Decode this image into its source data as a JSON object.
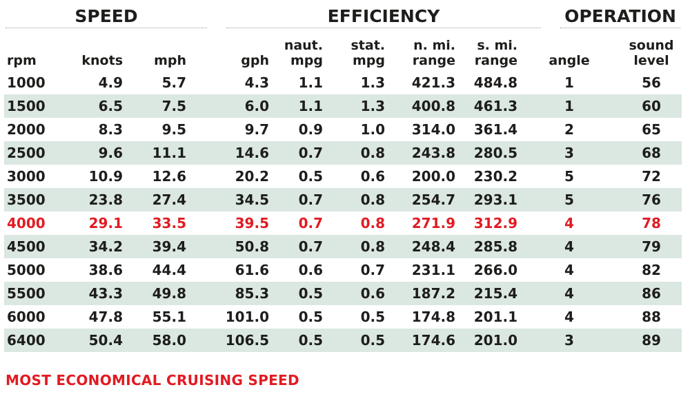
{
  "groups": {
    "speed": "SPEED",
    "efficiency": "EFFICIENCY",
    "operation": "OPERATION"
  },
  "columns": [
    "rpm",
    "knots",
    "mph",
    "gph",
    "naut.\nmpg",
    "stat.\nmpg",
    "n. mi.\nrange",
    "s. mi.\nrange",
    "angle",
    "sound\nlevel"
  ],
  "rows": [
    [
      "1000",
      "4.9",
      "5.7",
      "4.3",
      "1.1",
      "1.3",
      "421.3",
      "484.8",
      "1",
      "56"
    ],
    [
      "1500",
      "6.5",
      "7.5",
      "6.0",
      "1.1",
      "1.3",
      "400.8",
      "461.3",
      "1",
      "60"
    ],
    [
      "2000",
      "8.3",
      "9.5",
      "9.7",
      "0.9",
      "1.0",
      "314.0",
      "361.4",
      "2",
      "65"
    ],
    [
      "2500",
      "9.6",
      "11.1",
      "14.6",
      "0.7",
      "0.8",
      "243.8",
      "280.5",
      "3",
      "68"
    ],
    [
      "3000",
      "10.9",
      "12.6",
      "20.2",
      "0.5",
      "0.6",
      "200.0",
      "230.2",
      "5",
      "72"
    ],
    [
      "3500",
      "23.8",
      "27.4",
      "34.5",
      "0.7",
      "0.8",
      "254.7",
      "293.1",
      "5",
      "76"
    ],
    [
      "4000",
      "29.1",
      "33.5",
      "39.5",
      "0.7",
      "0.8",
      "271.9",
      "312.9",
      "4",
      "78"
    ],
    [
      "4500",
      "34.2",
      "39.4",
      "50.8",
      "0.7",
      "0.8",
      "248.4",
      "285.8",
      "4",
      "79"
    ],
    [
      "5000",
      "38.6",
      "44.4",
      "61.6",
      "0.6",
      "0.7",
      "231.1",
      "266.0",
      "4",
      "82"
    ],
    [
      "5500",
      "43.3",
      "49.8",
      "85.3",
      "0.5",
      "0.6",
      "187.2",
      "215.4",
      "4",
      "86"
    ],
    [
      "6000",
      "47.8",
      "55.1",
      "101.0",
      "0.5",
      "0.5",
      "174.8",
      "201.1",
      "4",
      "88"
    ],
    [
      "6400",
      "50.4",
      "58.0",
      "106.5",
      "0.5",
      "0.5",
      "174.6",
      "201.0",
      "3",
      "89"
    ]
  ],
  "highlighted_rpm": "4000",
  "legend": "MOST ECONOMICAL CRUISING SPEED",
  "colors": {
    "highlight": "#e11b23",
    "stripe": "#dbe7e1",
    "text": "#1d1d1b"
  }
}
